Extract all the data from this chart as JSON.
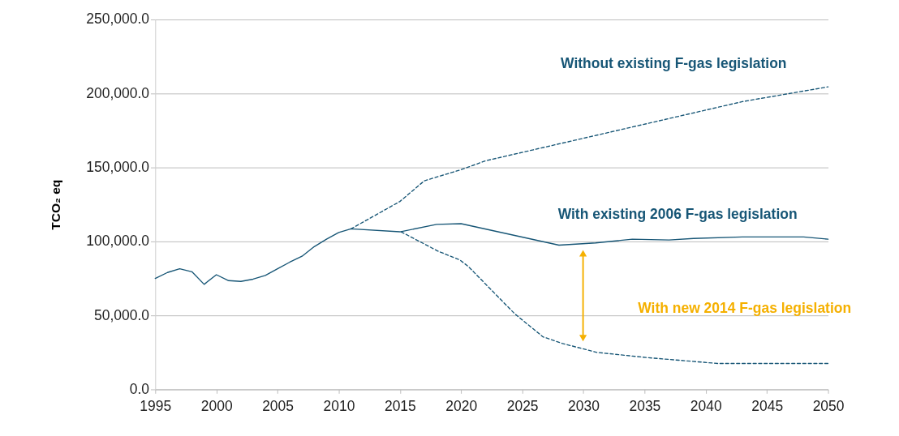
{
  "chart_data": {
    "type": "line",
    "ylabel": "TCO₂ eq",
    "xlim": [
      1995,
      2050
    ],
    "xticks": [
      1995,
      2000,
      2005,
      2010,
      2015,
      2020,
      2025,
      2030,
      2035,
      2040,
      2045,
      2050
    ],
    "ylim": [
      0,
      250000
    ],
    "yticks": [
      {
        "value": 0,
        "label": "0.0"
      },
      {
        "value": 50000,
        "label": "50,000.0"
      },
      {
        "value": 100000,
        "label": "100,000.0"
      },
      {
        "value": 150000,
        "label": "150,000.0"
      },
      {
        "value": 200000,
        "label": "200,000.0"
      },
      {
        "value": 250000,
        "label": "250,000.0"
      }
    ],
    "grid": "y",
    "series": [
      {
        "color": "#175676",
        "line_style": "solid",
        "x": [
          1995,
          1996,
          1997,
          1998,
          1999,
          2000,
          2001,
          2002,
          2003,
          2004,
          2005,
          2006,
          2007,
          2008,
          2009,
          2010,
          2011,
          2015,
          2018,
          2020,
          2028,
          2031,
          2034,
          2037,
          2039,
          2043,
          2048,
          2050
        ],
        "values": [
          75000,
          79000,
          81500,
          79500,
          71000,
          77500,
          73500,
          73000,
          74500,
          77000,
          81500,
          86000,
          90000,
          96500,
          101500,
          106000,
          108500,
          106500,
          111500,
          112000,
          97500,
          99000,
          101500,
          101000,
          102000,
          103000,
          103000,
          101500
        ]
      },
      {
        "color": "#175676",
        "line_style": "dashed",
        "x": [
          2011,
          2015,
          2017,
          2020,
          2022,
          2043,
          2050
        ],
        "values": [
          108500,
          127000,
          141000,
          148500,
          154500,
          194500,
          204500
        ]
      },
      {
        "color": "#175676",
        "line_style": "dashed",
        "x": [
          2015.1,
          2018.1,
          2019.9,
          2020.6,
          2024.4,
          2026.7,
          2028.3,
          2031.1,
          2035.2,
          2041,
          2050
        ],
        "values": [
          106500,
          93500,
          87500,
          83000,
          51000,
          35500,
          31000,
          25000,
          21500,
          17500,
          17500
        ]
      }
    ],
    "annotations": [
      "Without existing F-gas legislation",
      "With existing 2006 F-gas legislation",
      "With new 2014 F-gas legislation"
    ]
  }
}
